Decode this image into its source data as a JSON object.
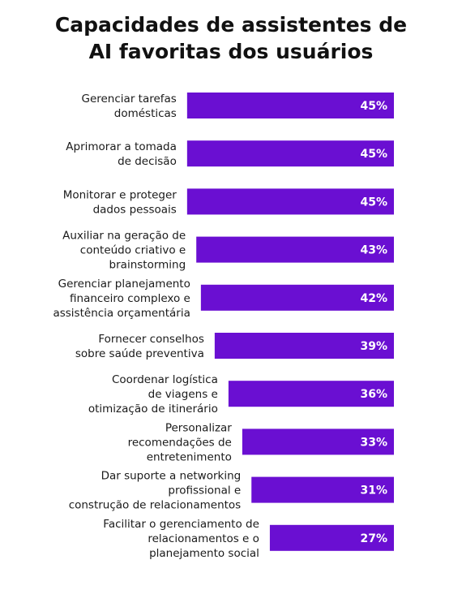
{
  "title_lines": [
    "Capacidades de assistentes de",
    "AI favoritas dos usuários"
  ],
  "colors": {
    "bar": "#6a0fd2",
    "label_text": "#1a1a1a",
    "value_text": "#ffffff"
  },
  "chart_data": {
    "type": "bar",
    "orientation": "horizontal",
    "title": "Capacidades de assistentes de AI favoritas dos usuários",
    "categories": [
      [
        "Gerenciar tarefas",
        "domésticas"
      ],
      [
        "Aprimorar a tomada",
        "de decisão"
      ],
      [
        "Monitorar e proteger",
        "dados pessoais"
      ],
      [
        "Auxiliar na geração de",
        "conteúdo criativo e",
        "brainstorming"
      ],
      [
        "Gerenciar planejamento",
        "financeiro complexo e",
        "assistência orçamentária"
      ],
      [
        "Fornecer conselhos",
        "sobre saúde preventiva"
      ],
      [
        "Coordenar logística",
        "de viagens e",
        "otimização de itinerário"
      ],
      [
        "Personalizar",
        "recomendações de",
        "entretenimento"
      ],
      [
        "Dar suporte a networking",
        "profissional e",
        "construção de relacionamentos"
      ],
      [
        "Facilitar o gerenciamento de",
        "relacionamentos e o",
        "planejamento social"
      ]
    ],
    "values": [
      45,
      45,
      45,
      43,
      42,
      39,
      36,
      33,
      31,
      27
    ],
    "value_labels": [
      "45%",
      "45%",
      "45%",
      "43%",
      "42%",
      "39%",
      "36%",
      "33%",
      "31%",
      "27%"
    ],
    "unit": "%",
    "grid": false,
    "legend": "none"
  }
}
